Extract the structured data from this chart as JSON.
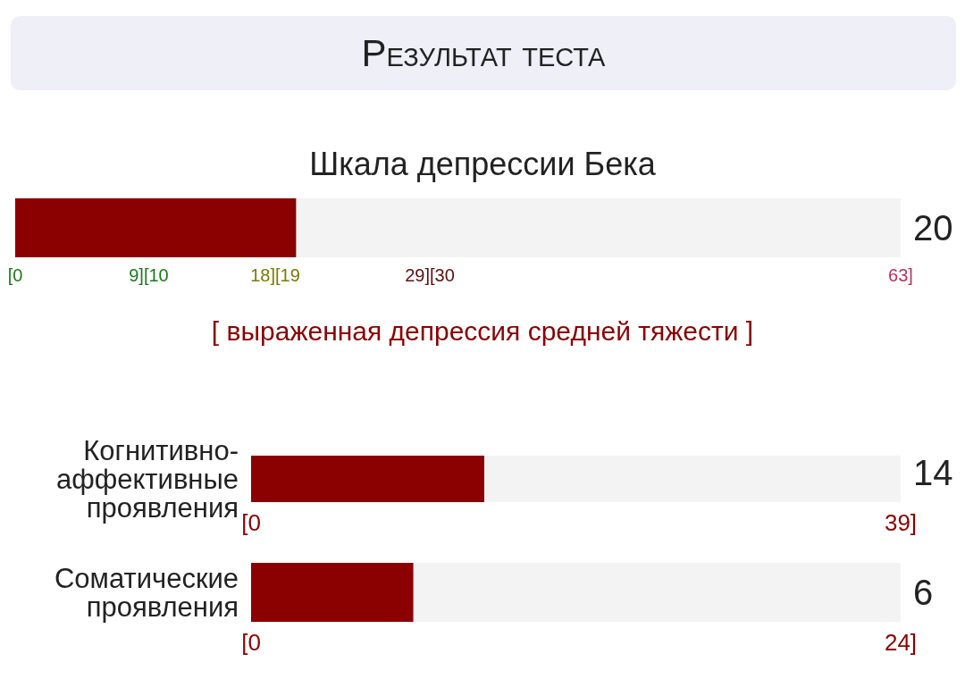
{
  "chart_data": [
    {
      "type": "bar",
      "orientation": "horizontal",
      "stacked": true,
      "title": "Результат теста",
      "subtitle": "Шкала депрессии Бека",
      "categories": [
        null
      ],
      "series": [
        {
          "color": "#8b0000",
          "values": [
            20
          ]
        },
        {
          "color": "#f3f3f3",
          "values": [
            43
          ]
        }
      ],
      "xlim": [
        0,
        63
      ],
      "xticks": [
        {
          "value": 0,
          "label": "[0"
        },
        {
          "value": 9.5,
          "label": "9][10"
        },
        {
          "value": 18.5,
          "label": "18][19"
        },
        {
          "value": 29.5,
          "label": "29][30"
        },
        {
          "value": 63,
          "label": "63]"
        }
      ],
      "annotations": [
        {
          "text": "20",
          "x": 63
        },
        "[ выраженная депрессия средней тяжести ]"
      ]
    },
    {
      "type": "bar",
      "orientation": "horizontal",
      "stacked": true,
      "categories": [
        "Когнитивно-аффективные проявления"
      ],
      "series": [
        {
          "color": "#8b0000",
          "values": [
            14
          ]
        },
        {
          "color": "#f3f3f3",
          "values": [
            25
          ]
        }
      ],
      "xlim": [
        0,
        39
      ],
      "xticks": [
        {
          "value": 0,
          "label": "[0"
        },
        {
          "value": 39,
          "label": "39]"
        }
      ],
      "annotations": [
        {
          "text": "14",
          "x": 39
        }
      ]
    },
    {
      "type": "bar",
      "orientation": "horizontal",
      "stacked": true,
      "categories": [
        "Соматические проявления"
      ],
      "series": [
        {
          "color": "#8b0000",
          "values": [
            6
          ]
        },
        {
          "color": "#f3f3f3",
          "values": [
            18
          ]
        }
      ],
      "xlim": [
        0,
        24
      ],
      "xticks": [
        {
          "value": 0,
          "label": "[0"
        },
        {
          "value": 24,
          "label": "24]"
        }
      ],
      "annotations": [
        {
          "text": "6",
          "x": 24
        }
      ]
    }
  ]
}
